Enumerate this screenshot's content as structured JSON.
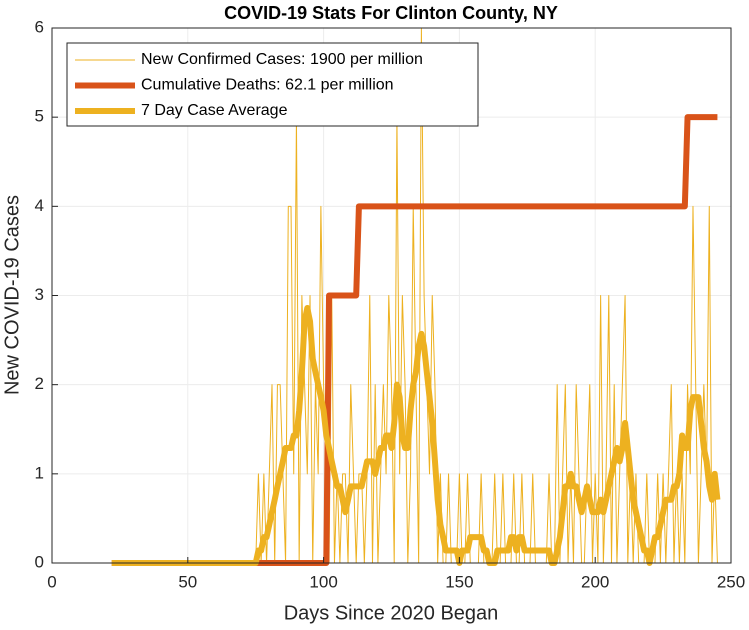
{
  "chart_data": {
    "type": "line",
    "title": "COVID-19 Stats For Clinton County, NY",
    "xlabel": "Days Since 2020 Began",
    "ylabel": "New COVID-19 Cases",
    "xlim": [
      0,
      250
    ],
    "xticks": [
      0,
      50,
      100,
      150,
      200,
      250
    ],
    "ylim": [
      0,
      6
    ],
    "yticks": [
      0,
      1,
      2,
      3,
      4,
      5,
      6
    ],
    "grid": true,
    "legend": "upper left",
    "x": [
      22,
      23,
      24,
      25,
      26,
      27,
      28,
      29,
      30,
      31,
      32,
      33,
      34,
      35,
      36,
      37,
      38,
      39,
      40,
      41,
      42,
      43,
      44,
      45,
      46,
      47,
      48,
      49,
      50,
      51,
      52,
      53,
      54,
      55,
      56,
      57,
      58,
      59,
      60,
      61,
      62,
      63,
      64,
      65,
      66,
      67,
      68,
      69,
      70,
      71,
      72,
      73,
      74,
      75,
      76,
      77,
      78,
      79,
      80,
      81,
      82,
      83,
      84,
      85,
      86,
      87,
      88,
      89,
      90,
      91,
      92,
      93,
      94,
      95,
      96,
      97,
      98,
      99,
      100,
      101,
      102,
      103,
      104,
      105,
      106,
      107,
      108,
      109,
      110,
      111,
      112,
      113,
      114,
      115,
      116,
      117,
      118,
      119,
      120,
      121,
      122,
      123,
      124,
      125,
      126,
      127,
      128,
      129,
      130,
      131,
      132,
      133,
      134,
      135,
      136,
      137,
      138,
      139,
      140,
      141,
      142,
      143,
      144,
      145,
      146,
      147,
      148,
      149,
      150,
      151,
      152,
      153,
      154,
      155,
      156,
      157,
      158,
      159,
      160,
      161,
      162,
      163,
      164,
      165,
      166,
      167,
      168,
      169,
      170,
      171,
      172,
      173,
      174,
      175,
      176,
      177,
      178,
      179,
      180,
      181,
      182,
      183,
      184,
      185,
      186,
      187,
      188,
      189,
      190,
      191,
      192,
      193,
      194,
      195,
      196,
      197,
      198,
      199,
      200,
      201,
      202,
      203,
      204,
      205,
      206,
      207,
      208,
      209,
      210,
      211,
      212,
      213,
      214,
      215,
      216,
      217,
      218,
      219,
      220,
      221,
      222,
      223,
      224,
      225,
      226,
      227,
      228,
      229,
      230,
      231,
      232,
      233,
      234,
      235,
      236,
      237,
      238,
      239,
      240,
      241,
      242,
      243,
      244,
      245
    ],
    "series": [
      {
        "name": "New Confirmed Cases: 1900 per million",
        "color": "#EDB120",
        "width": 1,
        "values": [
          0,
          0,
          0,
          0,
          0,
          0,
          0,
          0,
          0,
          0,
          0,
          0,
          0,
          0,
          0,
          0,
          0,
          0,
          0,
          0,
          0,
          0,
          0,
          0,
          0,
          0,
          0,
          0,
          0,
          0,
          0,
          0,
          0,
          0,
          0,
          0,
          0,
          0,
          0,
          0,
          0,
          0,
          0,
          0,
          0,
          0,
          0,
          0,
          0,
          0,
          0,
          0,
          0,
          0,
          1,
          0,
          1,
          0,
          1,
          2,
          0,
          2,
          2,
          1,
          0,
          4,
          4,
          1,
          5,
          0,
          3,
          2,
          1,
          3,
          0,
          2,
          1,
          4,
          2,
          1,
          0,
          3,
          0,
          1,
          0,
          1,
          1,
          0,
          2,
          1,
          0,
          1,
          1,
          0,
          1,
          3,
          0,
          2,
          0,
          1,
          2,
          1,
          3,
          2,
          0,
          5,
          1,
          3,
          2,
          0,
          1,
          4,
          2,
          0,
          6,
          3,
          2,
          1,
          3,
          2,
          0,
          1,
          0,
          0,
          1,
          0,
          0,
          0,
          1,
          0,
          0,
          1,
          0,
          0,
          0,
          0,
          1,
          0,
          0,
          0,
          0,
          1,
          0,
          0,
          1,
          0,
          0,
          0,
          1,
          0,
          0,
          1,
          0,
          0,
          0,
          1,
          0,
          0,
          0,
          0,
          0,
          1,
          0,
          0,
          2,
          0,
          1,
          2,
          0,
          1,
          0,
          2,
          1,
          0,
          0,
          1,
          2,
          0,
          1,
          0,
          3,
          0,
          1,
          3,
          0,
          2,
          0,
          1,
          2,
          3,
          0,
          1,
          0,
          1,
          0,
          0,
          0,
          1,
          0,
          0,
          0,
          1,
          0,
          1,
          0,
          1,
          2,
          0,
          1,
          0,
          1,
          0,
          2,
          1,
          4,
          2,
          0,
          1,
          2,
          1,
          4,
          0,
          1,
          0
        ]
      },
      {
        "name": "Cumulative Deaths: 62.1 per million",
        "color": "#D95319",
        "width": 6,
        "values": [
          0,
          0,
          0,
          0,
          0,
          0,
          0,
          0,
          0,
          0,
          0,
          0,
          0,
          0,
          0,
          0,
          0,
          0,
          0,
          0,
          0,
          0,
          0,
          0,
          0,
          0,
          0,
          0,
          0,
          0,
          0,
          0,
          0,
          0,
          0,
          0,
          0,
          0,
          0,
          0,
          0,
          0,
          0,
          0,
          0,
          0,
          0,
          0,
          0,
          0,
          0,
          0,
          0,
          0,
          0,
          0,
          0,
          0,
          0,
          0,
          0,
          0,
          0,
          0,
          0,
          0,
          0,
          0,
          0,
          0,
          0,
          0,
          0,
          0,
          0,
          0,
          0,
          0,
          0,
          0,
          3,
          3,
          3,
          3,
          3,
          3,
          3,
          3,
          3,
          3,
          3,
          4,
          4,
          4,
          4,
          4,
          4,
          4,
          4,
          4,
          4,
          4,
          4,
          4,
          4,
          4,
          4,
          4,
          4,
          4,
          4,
          4,
          4,
          4,
          4,
          4,
          4,
          4,
          4,
          4,
          4,
          4,
          4,
          4,
          4,
          4,
          4,
          4,
          4,
          4,
          4,
          4,
          4,
          4,
          4,
          4,
          4,
          4,
          4,
          4,
          4,
          4,
          4,
          4,
          4,
          4,
          4,
          4,
          4,
          4,
          4,
          4,
          4,
          4,
          4,
          4,
          4,
          4,
          4,
          4,
          4,
          4,
          4,
          4,
          4,
          4,
          4,
          4,
          4,
          4,
          4,
          4,
          4,
          4,
          4,
          4,
          4,
          4,
          4,
          4,
          4,
          4,
          4,
          4,
          4,
          4,
          4,
          4,
          4,
          4,
          4,
          4,
          4,
          4,
          4,
          4,
          4,
          4,
          4,
          4,
          4,
          4,
          4,
          4,
          4,
          4,
          4,
          4,
          4,
          4,
          4,
          4,
          5,
          5,
          5,
          5,
          5,
          5,
          5,
          5,
          5,
          5,
          5,
          5
        ]
      },
      {
        "name": "7 Day Case Average",
        "color": "#EDB120",
        "width": 6,
        "values": [
          0,
          0,
          0,
          0,
          0,
          0,
          0,
          0,
          0,
          0,
          0,
          0,
          0,
          0,
          0,
          0,
          0,
          0,
          0,
          0,
          0,
          0,
          0,
          0,
          0,
          0,
          0,
          0,
          0,
          0,
          0,
          0,
          0,
          0,
          0,
          0,
          0,
          0,
          0,
          0,
          0,
          0,
          0,
          0,
          0,
          0,
          0,
          0,
          0,
          0,
          0,
          0,
          0,
          0,
          0.14,
          0.14,
          0.29,
          0.29,
          0.43,
          0.57,
          0.71,
          0.86,
          1.0,
          1.14,
          1.29,
          1.29,
          1.29,
          1.43,
          1.43,
          1.71,
          2.14,
          2.71,
          2.86,
          2.71,
          2.29,
          2.14,
          2.0,
          1.86,
          1.71,
          1.43,
          1.29,
          1.14,
          1.0,
          0.86,
          0.86,
          0.71,
          0.57,
          0.71,
          0.86,
          0.86,
          0.86,
          0.86,
          0.86,
          1.0,
          1.14,
          1.14,
          1.14,
          1.0,
          1.14,
          1.29,
          1.29,
          1.43,
          1.43,
          1.29,
          1.57,
          2.0,
          1.86,
          1.43,
          1.29,
          1.29,
          1.71,
          2.0,
          2.14,
          2.43,
          2.57,
          2.43,
          2.14,
          1.86,
          1.57,
          1.14,
          0.71,
          0.43,
          0.29,
          0.14,
          0.14,
          0.14,
          0.14,
          0.14,
          0,
          0.14,
          0.14,
          0.14,
          0.29,
          0.29,
          0.29,
          0.29,
          0.29,
          0.14,
          0.14,
          0,
          0,
          0,
          0.14,
          0.14,
          0.14,
          0.14,
          0.14,
          0.29,
          0.29,
          0.14,
          0.29,
          0.29,
          0.14,
          0.14,
          0.14,
          0.14,
          0.14,
          0.14,
          0.14,
          0.14,
          0.14,
          0.14,
          0,
          0,
          0.14,
          0.29,
          0.57,
          0.86,
          0.86,
          1.0,
          0.86,
          0.86,
          0.71,
          0.57,
          0.71,
          0.86,
          0.71,
          0.57,
          0.57,
          0.57,
          0.71,
          0.57,
          0.71,
          0.86,
          1.0,
          1.14,
          1.29,
          1.14,
          1.29,
          1.57,
          1.29,
          1.0,
          0.71,
          0.57,
          0.43,
          0.29,
          0.14,
          0.14,
          0,
          0.14,
          0.29,
          0.29,
          0.43,
          0.57,
          0.71,
          0.71,
          0.71,
          0.86,
          0.86,
          1.0,
          1.43,
          1.29,
          1.29,
          1.71,
          1.86,
          1.86,
          1.86,
          1.57,
          1.29,
          1.14,
          0.86,
          0.71,
          1.0,
          0.71
        ]
      }
    ]
  }
}
